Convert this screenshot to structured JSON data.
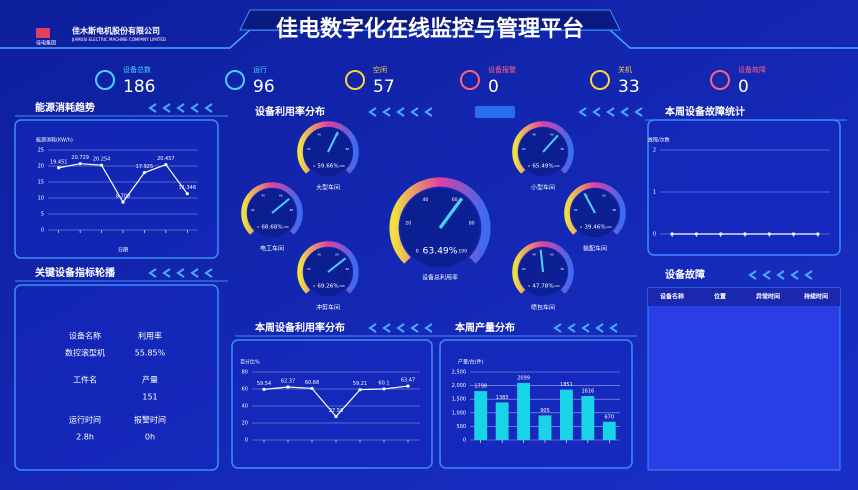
{
  "header": {
    "logo_text": "佳电集团",
    "company": "佳木斯电机股份有限公司",
    "company_en": "JIAMUSI ELECTRIC MACHINE COMPANY LIMITED",
    "title": "佳电数字化在线监控与管理平台"
  },
  "stats": [
    {
      "label": "设备总数",
      "value": "186"
    },
    {
      "label": "运行",
      "value": "96"
    },
    {
      "label": "空闲",
      "value": "57"
    },
    {
      "label": "设备报警",
      "value": "0"
    },
    {
      "label": "关机",
      "value": "33"
    },
    {
      "label": "设备故障",
      "value": "0"
    }
  ],
  "key_device": {
    "title": "关键设备指标轮播",
    "items": [
      {
        "label": "设备名称",
        "value": "数控滚型机"
      },
      {
        "label": "利用率",
        "value": "55.85%"
      },
      {
        "label": "工件名"
      },
      {
        "label": "产量",
        "value": "151"
      },
      {
        "label": "运行时间",
        "value": "2.8h"
      },
      {
        "label": "报警时间",
        "value": "0h"
      }
    ]
  },
  "faults": {
    "title": "设备故障",
    "headers": [
      "设备名称",
      "位置",
      "异常时间",
      "持续时间"
    ]
  },
  "chart_data": [
    {
      "type": "line",
      "title": "能源消耗趋势",
      "ylabel": "能源消耗(KW/h)",
      "xlabel": "日期",
      "categories": [
        null,
        null,
        null,
        null,
        null,
        null,
        null
      ],
      "values": [
        19.451,
        20.729,
        20.254,
        8.709,
        17.925,
        20.457,
        11.346
      ],
      "ylim": [
        0,
        25
      ],
      "yticks": [
        0,
        5,
        10,
        15,
        20,
        25
      ],
      "color": "#ffffff",
      "grid": true,
      "data_labels": true
    },
    {
      "type": "gauge",
      "title": "设备利用率分布",
      "categories": [
        "大型车间",
        "小型车间",
        "电工车间",
        "装配车间",
        "冲剪车间",
        "喷包车间",
        "设备总利用率"
      ],
      "values": [
        59.66,
        65.49,
        68.68,
        39.46,
        69.26,
        47.78,
        63.49
      ],
      "value_labels": [
        "59.66%",
        "65.49%",
        "68.68%",
        "39.46%",
        "69.26%",
        "47.78%",
        "63.49%"
      ],
      "ylim": [
        0,
        100
      ],
      "yticks": [
        0,
        20,
        40,
        60,
        80,
        100
      ]
    },
    {
      "type": "line",
      "title": "本周设备故障统计",
      "ylabel": "故障/次数",
      "categories": [
        null,
        null,
        null,
        null,
        null,
        null,
        null
      ],
      "values": [
        0,
        0,
        0,
        0,
        0,
        0,
        0
      ],
      "ylim": [
        0,
        2
      ],
      "yticks": [
        0,
        1,
        2
      ],
      "color": "#ffffff",
      "grid": true,
      "data_labels": false
    },
    {
      "type": "line",
      "title": "本周设备利用率分布",
      "ylabel": "百分比%",
      "categories": [
        null,
        null,
        null,
        null,
        null,
        null,
        null
      ],
      "values": [
        59.54,
        62.37,
        60.68,
        27.58,
        59.21,
        60.1,
        63.47
      ],
      "ylim": [
        0,
        80
      ],
      "yticks": [
        0,
        20,
        40,
        60,
        80
      ],
      "color": "#ffffff",
      "grid": true,
      "data_labels": true
    },
    {
      "type": "bar",
      "title": "本周产量分布",
      "ylabel": "产量/台(件)",
      "categories": [
        null,
        null,
        null,
        null,
        null,
        null,
        null
      ],
      "values": [
        1798,
        1383,
        2099,
        905,
        1851,
        1616,
        670
      ],
      "ylim": [
        0,
        2500
      ],
      "yticks": [
        0,
        500,
        {
          "value": 1000,
          "label": "1,000"
        },
        {
          "value": 1500,
          "label": "1,500"
        },
        {
          "value": 2000,
          "label": "2,000"
        },
        {
          "value": 2500,
          "label": "2,500"
        }
      ],
      "color": "#19d3e6",
      "grid": true,
      "data_labels": true
    }
  ]
}
